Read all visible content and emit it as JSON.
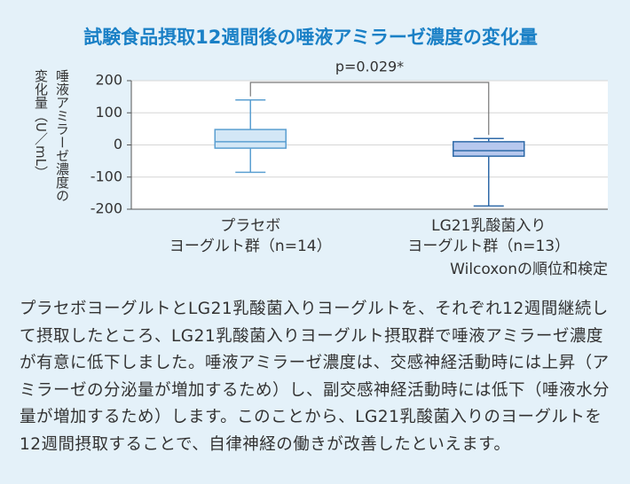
{
  "chart_data": {
    "type": "box",
    "title": "試験食品摂取12週間後の唾液アミラーゼ濃度の変化量",
    "y_label_lines": [
      "唾液アミラーゼ濃度の",
      "変化量（U／mL）"
    ],
    "categories": [
      "プラセボ\nヨーグルト群（n=14）",
      "LG21乳酸菌入り\nヨーグルト群（n=13）"
    ],
    "boxes": [
      {
        "low": -85,
        "q1": -10,
        "median": 10,
        "q3": 48,
        "high": 140,
        "color": "#d3e7f6",
        "edge": "#5b9fd1"
      },
      {
        "low": -190,
        "q1": -35,
        "median": -18,
        "q3": 10,
        "high": 20,
        "color": "#b7c8ee",
        "edge": "#2f6aa8"
      }
    ],
    "ylim": [
      -200,
      200
    ],
    "yticks": [
      -200,
      -100,
      0,
      100,
      200
    ],
    "grid": true,
    "annotation": "p=0.029*",
    "note": "Wilcoxonの順位和検定"
  },
  "body_text": "プラセボヨーグルトとLG21乳酸菌入りヨーグルトを、それぞれ12週間継続して摂取したところ、LG21乳酸菌入りヨーグルト摂取群で唾液アミラーゼ濃度が有意に低下しました。唾液アミラーゼ濃度は、交感神経活動時には上昇（アミラーゼの分泌量が増加するため）し、副交感神経活動時には低下（唾液水分量が増加するため）します。このことから、LG21乳酸菌入りのヨーグルトを12週間摂取することで、自律神経の働きが改善したといえます。"
}
